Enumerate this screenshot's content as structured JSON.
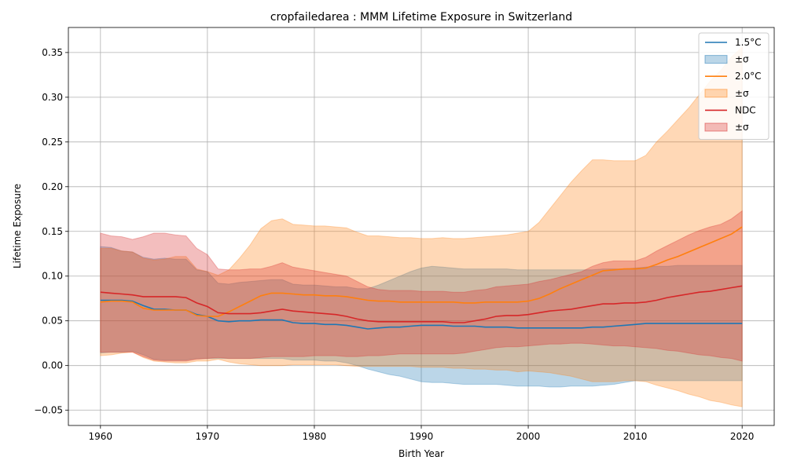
{
  "chart_data": {
    "type": "line",
    "title": "cropfailedarea : MMM Lifetime Exposure in Switzerland",
    "xlabel": "Birth Year",
    "ylabel": "Lifetime Exposure",
    "xlim": [
      1957,
      2023
    ],
    "ylim": [
      -0.067,
      0.378
    ],
    "xticks": [
      1960,
      1970,
      1980,
      1990,
      2000,
      2010,
      2020
    ],
    "yticks": [
      -0.05,
      0.0,
      0.05,
      0.1,
      0.15,
      0.2,
      0.25,
      0.3,
      0.35
    ],
    "ytick_labels": [
      "−0.05",
      "0.00",
      "0.05",
      "0.10",
      "0.15",
      "0.20",
      "0.25",
      "0.30",
      "0.35"
    ],
    "grid": true,
    "legend_position": "top-right",
    "band_label": "±σ",
    "x": [
      1960,
      1961,
      1962,
      1963,
      1964,
      1965,
      1966,
      1967,
      1968,
      1969,
      1970,
      1971,
      1972,
      1973,
      1974,
      1975,
      1976,
      1977,
      1978,
      1979,
      1980,
      1981,
      1982,
      1983,
      1984,
      1985,
      1986,
      1987,
      1988,
      1989,
      1990,
      1991,
      1992,
      1993,
      1994,
      1995,
      1996,
      1997,
      1998,
      1999,
      2000,
      2001,
      2002,
      2003,
      2004,
      2005,
      2006,
      2007,
      2008,
      2009,
      2010,
      2011,
      2012,
      2013,
      2014,
      2015,
      2016,
      2017,
      2018,
      2019,
      2020
    ],
    "series": [
      {
        "name": "1.5°C",
        "color": "#1f77b4",
        "band_color": "#1f77b4",
        "band_opacity": 0.3,
        "mean": [
          0.073,
          0.073,
          0.073,
          0.072,
          0.067,
          0.063,
          0.063,
          0.062,
          0.062,
          0.057,
          0.055,
          0.05,
          0.049,
          0.05,
          0.05,
          0.051,
          0.051,
          0.051,
          0.048,
          0.047,
          0.047,
          0.046,
          0.046,
          0.045,
          0.043,
          0.041,
          0.042,
          0.043,
          0.043,
          0.044,
          0.045,
          0.045,
          0.045,
          0.044,
          0.044,
          0.044,
          0.043,
          0.043,
          0.043,
          0.042,
          0.042,
          0.042,
          0.042,
          0.042,
          0.042,
          0.042,
          0.043,
          0.043,
          0.044,
          0.045,
          0.046,
          0.047,
          0.047,
          0.047,
          0.047,
          0.047,
          0.047,
          0.047,
          0.047,
          0.047,
          0.047
        ],
        "upper": [
          0.133,
          0.132,
          0.128,
          0.127,
          0.121,
          0.119,
          0.12,
          0.119,
          0.119,
          0.107,
          0.105,
          0.092,
          0.091,
          0.093,
          0.094,
          0.095,
          0.096,
          0.096,
          0.091,
          0.09,
          0.09,
          0.089,
          0.088,
          0.088,
          0.086,
          0.086,
          0.09,
          0.095,
          0.1,
          0.105,
          0.109,
          0.111,
          0.11,
          0.109,
          0.108,
          0.108,
          0.108,
          0.108,
          0.108,
          0.107,
          0.107,
          0.107,
          0.107,
          0.107,
          0.107,
          0.107,
          0.107,
          0.108,
          0.108,
          0.108,
          0.109,
          0.11,
          0.111,
          0.111,
          0.112,
          0.112,
          0.112,
          0.112,
          0.112,
          0.112,
          0.112
        ],
        "lower": [
          0.014,
          0.015,
          0.015,
          0.016,
          0.012,
          0.007,
          0.006,
          0.006,
          0.006,
          0.008,
          0.008,
          0.008,
          0.008,
          0.008,
          0.008,
          0.008,
          0.008,
          0.008,
          0.006,
          0.006,
          0.006,
          0.005,
          0.005,
          0.003,
          0.0,
          -0.004,
          -0.007,
          -0.01,
          -0.012,
          -0.015,
          -0.018,
          -0.019,
          -0.019,
          -0.02,
          -0.021,
          -0.021,
          -0.021,
          -0.021,
          -0.022,
          -0.023,
          -0.023,
          -0.023,
          -0.024,
          -0.024,
          -0.023,
          -0.023,
          -0.023,
          -0.022,
          -0.021,
          -0.019,
          -0.017,
          -0.017,
          -0.017,
          -0.017,
          -0.017,
          -0.017,
          -0.017,
          -0.017,
          -0.017,
          -0.017,
          -0.017
        ]
      },
      {
        "name": "2.0°C",
        "color": "#ff7f0e",
        "band_color": "#ff7f0e",
        "band_opacity": 0.3,
        "mean": [
          0.071,
          0.072,
          0.072,
          0.071,
          0.064,
          0.062,
          0.062,
          0.062,
          0.062,
          0.056,
          0.055,
          0.055,
          0.06,
          0.066,
          0.072,
          0.078,
          0.081,
          0.081,
          0.08,
          0.079,
          0.079,
          0.078,
          0.078,
          0.077,
          0.075,
          0.073,
          0.072,
          0.072,
          0.071,
          0.071,
          0.071,
          0.071,
          0.071,
          0.071,
          0.07,
          0.07,
          0.071,
          0.071,
          0.071,
          0.071,
          0.072,
          0.075,
          0.08,
          0.086,
          0.091,
          0.096,
          0.101,
          0.106,
          0.107,
          0.108,
          0.108,
          0.109,
          0.113,
          0.118,
          0.122,
          0.127,
          0.132,
          0.137,
          0.142,
          0.147,
          0.155
        ],
        "upper": [
          0.131,
          0.131,
          0.128,
          0.127,
          0.12,
          0.118,
          0.119,
          0.122,
          0.122,
          0.108,
          0.105,
          0.101,
          0.107,
          0.12,
          0.135,
          0.153,
          0.162,
          0.164,
          0.158,
          0.157,
          0.156,
          0.156,
          0.155,
          0.154,
          0.149,
          0.145,
          0.145,
          0.144,
          0.143,
          0.143,
          0.142,
          0.142,
          0.143,
          0.142,
          0.142,
          0.143,
          0.144,
          0.145,
          0.146,
          0.148,
          0.15,
          0.16,
          0.175,
          0.19,
          0.205,
          0.218,
          0.23,
          0.23,
          0.229,
          0.229,
          0.229,
          0.235,
          0.25,
          0.262,
          0.275,
          0.288,
          0.303,
          0.318,
          0.33,
          0.345,
          0.356
        ],
        "lower": [
          0.011,
          0.012,
          0.014,
          0.015,
          0.009,
          0.005,
          0.004,
          0.003,
          0.003,
          0.005,
          0.005,
          0.007,
          0.004,
          0.002,
          0.001,
          0.0,
          0.0,
          0.0,
          0.001,
          0.001,
          0.001,
          0.001,
          0.001,
          0.0,
          -0.001,
          -0.001,
          -0.001,
          -0.001,
          -0.001,
          -0.001,
          -0.002,
          -0.002,
          -0.002,
          -0.003,
          -0.003,
          -0.004,
          -0.004,
          -0.005,
          -0.005,
          -0.007,
          -0.006,
          -0.007,
          -0.008,
          -0.01,
          -0.012,
          -0.015,
          -0.018,
          -0.018,
          -0.018,
          -0.017,
          -0.017,
          -0.018,
          -0.022,
          -0.025,
          -0.028,
          -0.032,
          -0.035,
          -0.039,
          -0.041,
          -0.044,
          -0.046
        ]
      },
      {
        "name": "NDC",
        "color": "#d62728",
        "band_color": "#d62728",
        "band_opacity": 0.3,
        "mean": [
          0.082,
          0.081,
          0.08,
          0.079,
          0.077,
          0.077,
          0.077,
          0.077,
          0.076,
          0.07,
          0.066,
          0.059,
          0.058,
          0.058,
          0.058,
          0.059,
          0.061,
          0.063,
          0.061,
          0.06,
          0.059,
          0.058,
          0.057,
          0.055,
          0.052,
          0.05,
          0.049,
          0.049,
          0.049,
          0.049,
          0.049,
          0.049,
          0.049,
          0.048,
          0.048,
          0.05,
          0.052,
          0.055,
          0.056,
          0.056,
          0.057,
          0.059,
          0.061,
          0.062,
          0.063,
          0.065,
          0.067,
          0.069,
          0.069,
          0.07,
          0.07,
          0.071,
          0.073,
          0.076,
          0.078,
          0.08,
          0.082,
          0.083,
          0.085,
          0.087,
          0.089
        ],
        "upper": [
          0.148,
          0.145,
          0.144,
          0.141,
          0.144,
          0.148,
          0.148,
          0.146,
          0.145,
          0.131,
          0.124,
          0.108,
          0.107,
          0.107,
          0.108,
          0.108,
          0.111,
          0.115,
          0.11,
          0.108,
          0.106,
          0.104,
          0.102,
          0.1,
          0.094,
          0.088,
          0.085,
          0.084,
          0.084,
          0.084,
          0.083,
          0.083,
          0.083,
          0.082,
          0.082,
          0.084,
          0.085,
          0.088,
          0.089,
          0.09,
          0.091,
          0.094,
          0.096,
          0.099,
          0.102,
          0.105,
          0.111,
          0.115,
          0.117,
          0.117,
          0.117,
          0.121,
          0.128,
          0.134,
          0.14,
          0.146,
          0.151,
          0.155,
          0.158,
          0.164,
          0.173
        ],
        "lower": [
          0.015,
          0.015,
          0.015,
          0.015,
          0.01,
          0.006,
          0.005,
          0.005,
          0.005,
          0.007,
          0.008,
          0.009,
          0.008,
          0.008,
          0.008,
          0.009,
          0.01,
          0.01,
          0.01,
          0.01,
          0.011,
          0.011,
          0.011,
          0.01,
          0.01,
          0.011,
          0.011,
          0.012,
          0.013,
          0.013,
          0.013,
          0.013,
          0.013,
          0.013,
          0.014,
          0.016,
          0.018,
          0.02,
          0.021,
          0.021,
          0.022,
          0.023,
          0.024,
          0.024,
          0.025,
          0.025,
          0.024,
          0.023,
          0.022,
          0.022,
          0.021,
          0.02,
          0.019,
          0.017,
          0.016,
          0.014,
          0.012,
          0.011,
          0.009,
          0.008,
          0.005
        ]
      }
    ]
  }
}
